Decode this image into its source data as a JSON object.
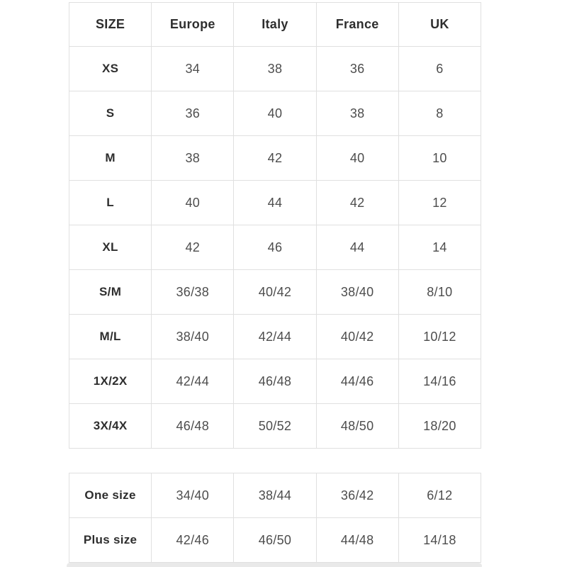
{
  "colors": {
    "background": "#ffffff",
    "border": "#e0e0e0",
    "header_text": "#2e2e2e",
    "cell_text": "#4d4d4d",
    "scrollbar_track": "#e9e9e9"
  },
  "chart_data": {
    "type": "table",
    "title": "",
    "columns": [
      "SIZE",
      "Europe",
      "Italy",
      "France",
      "UK"
    ],
    "rows": [
      [
        "XS",
        "34",
        "38",
        "36",
        "6"
      ],
      [
        "S",
        "36",
        "40",
        "38",
        "8"
      ],
      [
        "M",
        "38",
        "42",
        "40",
        "10"
      ],
      [
        "L",
        "40",
        "44",
        "42",
        "12"
      ],
      [
        "XL",
        "42",
        "46",
        "44",
        "14"
      ],
      [
        "S/M",
        "36/38",
        "40/42",
        "38/40",
        "8/10"
      ],
      [
        "M/L",
        "38/40",
        "42/44",
        "40/42",
        "10/12"
      ],
      [
        "1X/2X",
        "42/44",
        "46/48",
        "44/46",
        "14/16"
      ],
      [
        "3X/4X",
        "46/48",
        "50/52",
        "48/50",
        "18/20"
      ]
    ],
    "secondary_rows": [
      [
        "One size",
        "34/40",
        "38/44",
        "36/42",
        "6/12"
      ],
      [
        "Plus size",
        "42/46",
        "46/50",
        "44/48",
        "14/18"
      ]
    ],
    "layout": {
      "grid": true,
      "legend_position": "none"
    }
  }
}
